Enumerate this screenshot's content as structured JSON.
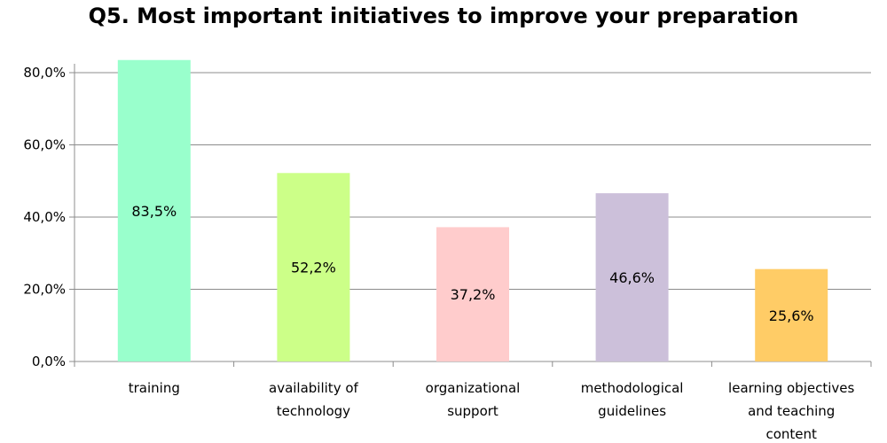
{
  "chart_data": {
    "type": "bar",
    "title": "Q5. Most important initiatives to improve your preparation",
    "xlabel": "",
    "ylabel": "",
    "ylim": [
      0,
      80
    ],
    "yticks": [
      "0,0%",
      "20,0%",
      "40,0%",
      "60,0%",
      "80,0%"
    ],
    "categories": [
      [
        "training"
      ],
      [
        "availability of",
        "technology"
      ],
      [
        "organizational",
        "support"
      ],
      [
        "methodological",
        "guidelines"
      ],
      [
        "learning objectives",
        "and teaching",
        "content"
      ]
    ],
    "values": [
      83.5,
      52.2,
      37.2,
      46.6,
      25.6
    ],
    "data_labels": [
      "83,5%",
      "52,2%",
      "37,2%",
      "46,6%",
      "25,6%"
    ],
    "colors": [
      "#99ffcc",
      "#ccff88",
      "#ffcccc",
      "#ccc0da",
      "#ffcc66"
    ],
    "grid": true,
    "legend": "none"
  }
}
